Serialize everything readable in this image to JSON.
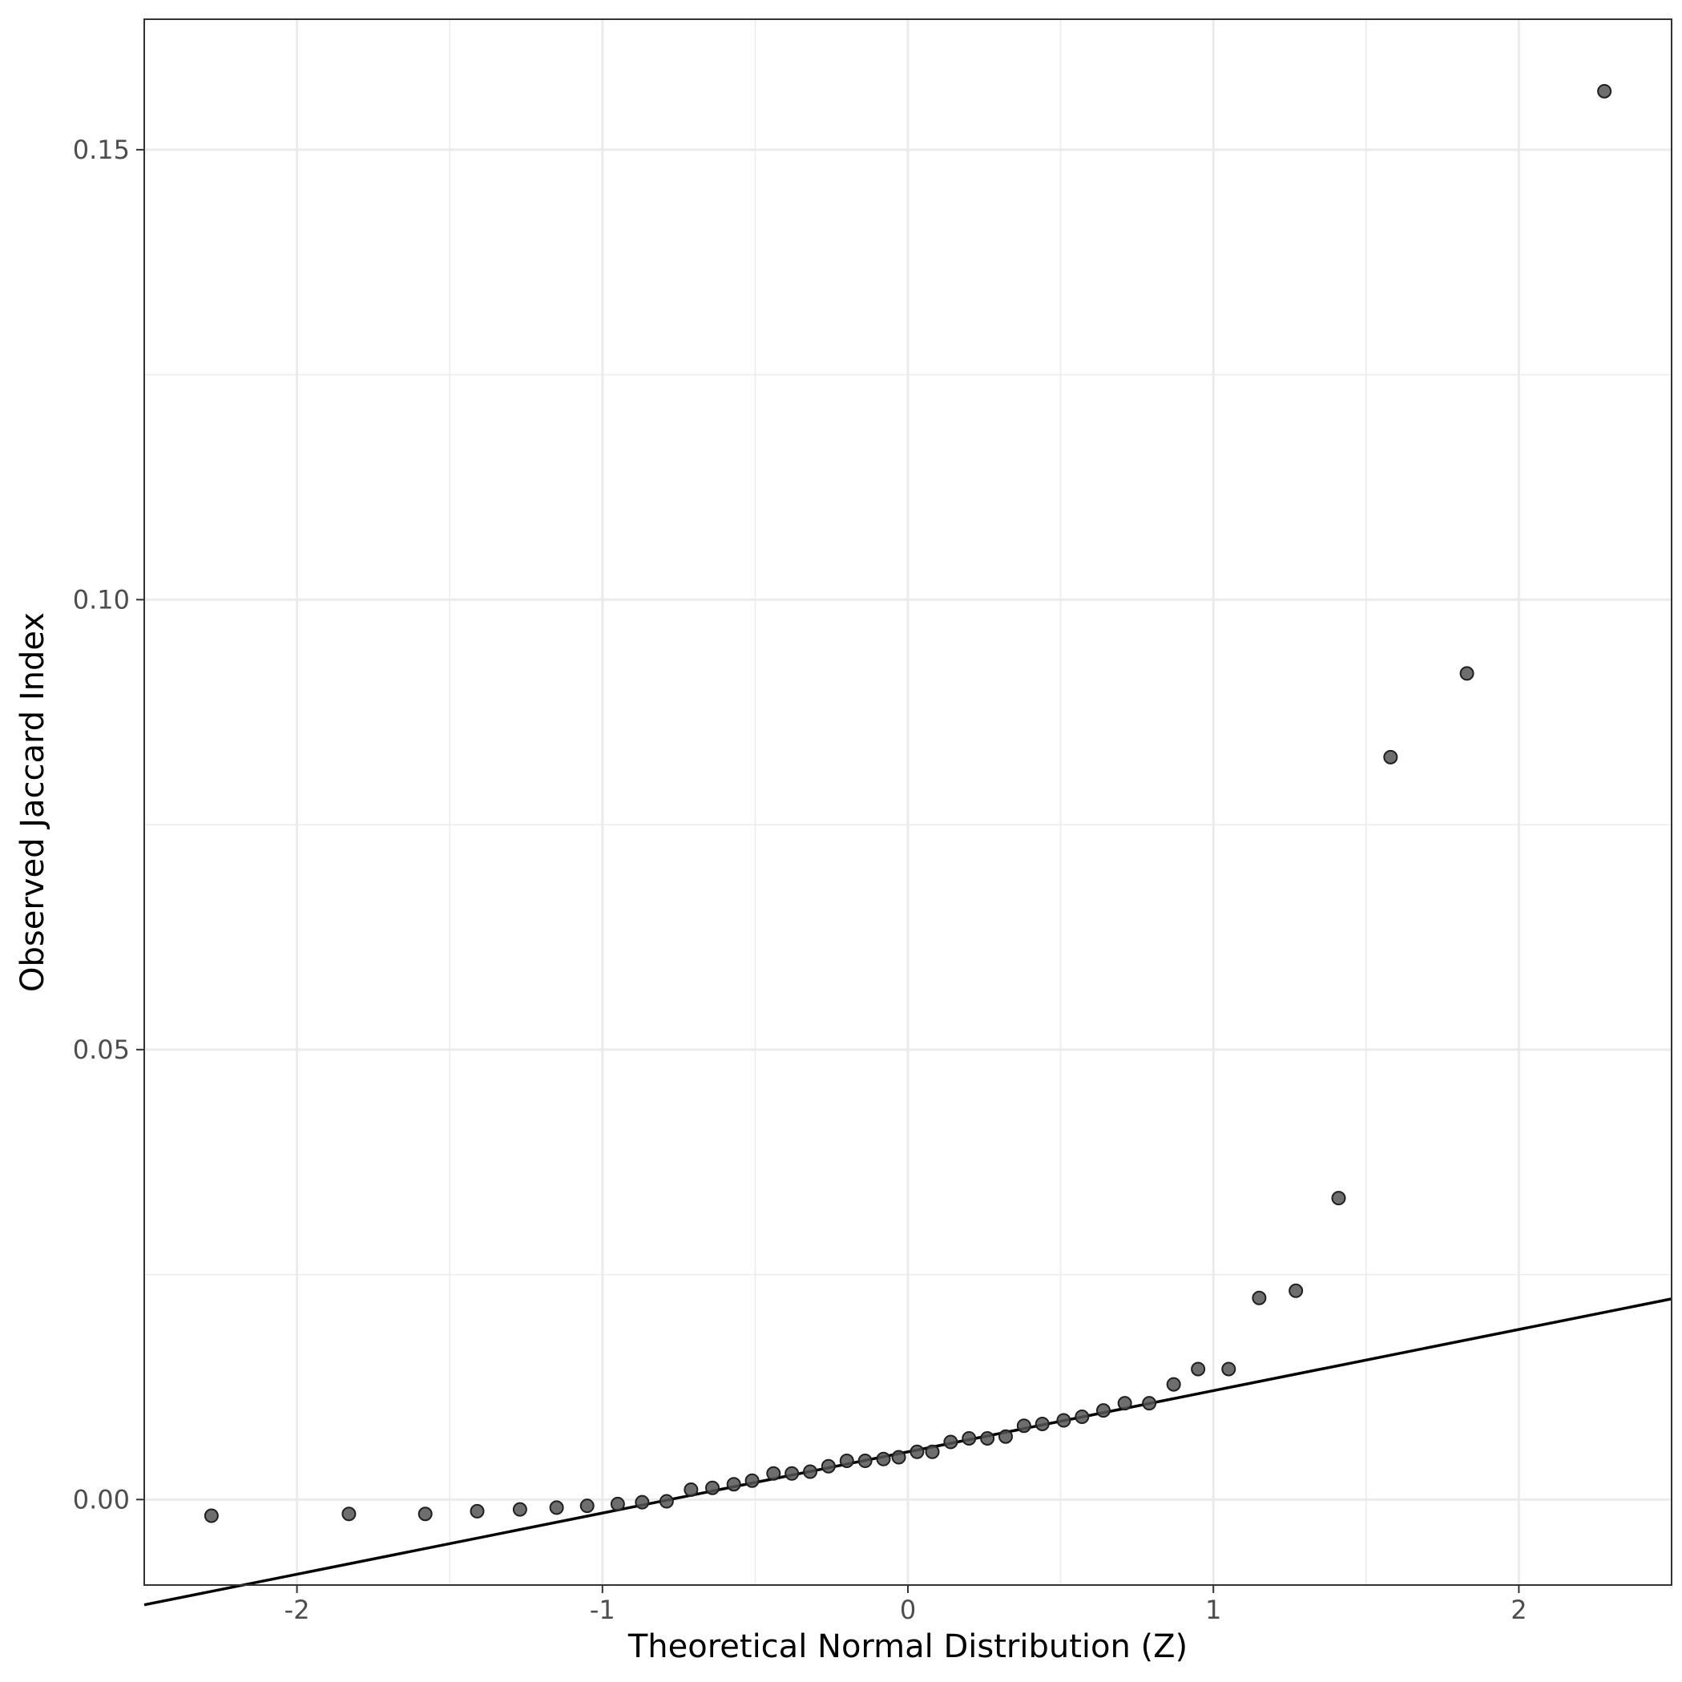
{
  "chart_data": {
    "type": "scatter",
    "title": "",
    "xlabel": "Theoretical Normal Distribution (Z)",
    "ylabel": "Observed Jaccard Index",
    "xlim": [
      -2.5,
      2.5
    ],
    "ylim": [
      -0.0095,
      0.1645
    ],
    "x_ticks": [
      -2,
      -1,
      0,
      1,
      2
    ],
    "x_tick_labels": [
      "-2",
      "-1",
      "0",
      "1",
      "2"
    ],
    "y_ticks": [
      0.0,
      0.05,
      0.1,
      0.15
    ],
    "y_tick_labels": [
      "0.00",
      "0.05",
      "0.10",
      "0.15"
    ],
    "x_minor_ticks": [
      -1.5,
      -0.5,
      0.5,
      1.5
    ],
    "y_minor_ticks": [
      0.025,
      0.075,
      0.125
    ],
    "grid": true,
    "point_color": "#555555",
    "point_stroke": "#1f1f1f",
    "line_color": "#000000",
    "points": [
      {
        "x": -2.28,
        "y": -0.0018
      },
      {
        "x": -1.83,
        "y": -0.0016
      },
      {
        "x": -1.58,
        "y": -0.0016
      },
      {
        "x": -1.41,
        "y": -0.0013
      },
      {
        "x": -1.27,
        "y": -0.0011
      },
      {
        "x": -1.15,
        "y": -0.0009
      },
      {
        "x": -1.05,
        "y": -0.0007
      },
      {
        "x": -0.95,
        "y": -0.0005
      },
      {
        "x": -0.87,
        "y": -0.0003
      },
      {
        "x": -0.79,
        "y": -0.0002
      },
      {
        "x": -0.71,
        "y": 0.0011
      },
      {
        "x": -0.64,
        "y": 0.0013
      },
      {
        "x": -0.57,
        "y": 0.0017
      },
      {
        "x": -0.51,
        "y": 0.0021
      },
      {
        "x": -0.44,
        "y": 0.0029
      },
      {
        "x": -0.38,
        "y": 0.0029
      },
      {
        "x": -0.32,
        "y": 0.0031
      },
      {
        "x": -0.26,
        "y": 0.0037
      },
      {
        "x": -0.2,
        "y": 0.0043
      },
      {
        "x": -0.14,
        "y": 0.0043
      },
      {
        "x": -0.08,
        "y": 0.0045
      },
      {
        "x": -0.03,
        "y": 0.0047
      },
      {
        "x": 0.03,
        "y": 0.0053
      },
      {
        "x": 0.08,
        "y": 0.0053
      },
      {
        "x": 0.14,
        "y": 0.0064
      },
      {
        "x": 0.2,
        "y": 0.0068
      },
      {
        "x": 0.26,
        "y": 0.0068
      },
      {
        "x": 0.32,
        "y": 0.007
      },
      {
        "x": 0.38,
        "y": 0.0082
      },
      {
        "x": 0.44,
        "y": 0.0084
      },
      {
        "x": 0.51,
        "y": 0.0088
      },
      {
        "x": 0.57,
        "y": 0.0092
      },
      {
        "x": 0.64,
        "y": 0.0099
      },
      {
        "x": 0.71,
        "y": 0.0107
      },
      {
        "x": 0.79,
        "y": 0.0107
      },
      {
        "x": 0.87,
        "y": 0.0128
      },
      {
        "x": 0.95,
        "y": 0.0145
      },
      {
        "x": 1.05,
        "y": 0.0145
      },
      {
        "x": 1.15,
        "y": 0.0224
      },
      {
        "x": 1.27,
        "y": 0.0232
      },
      {
        "x": 1.41,
        "y": 0.0335
      },
      {
        "x": 1.58,
        "y": 0.0825
      },
      {
        "x": 1.83,
        "y": 0.0918
      },
      {
        "x": 2.28,
        "y": 0.1565
      }
    ],
    "reference_line": {
      "intercept": 0.0053,
      "slope": 0.0068
    }
  }
}
